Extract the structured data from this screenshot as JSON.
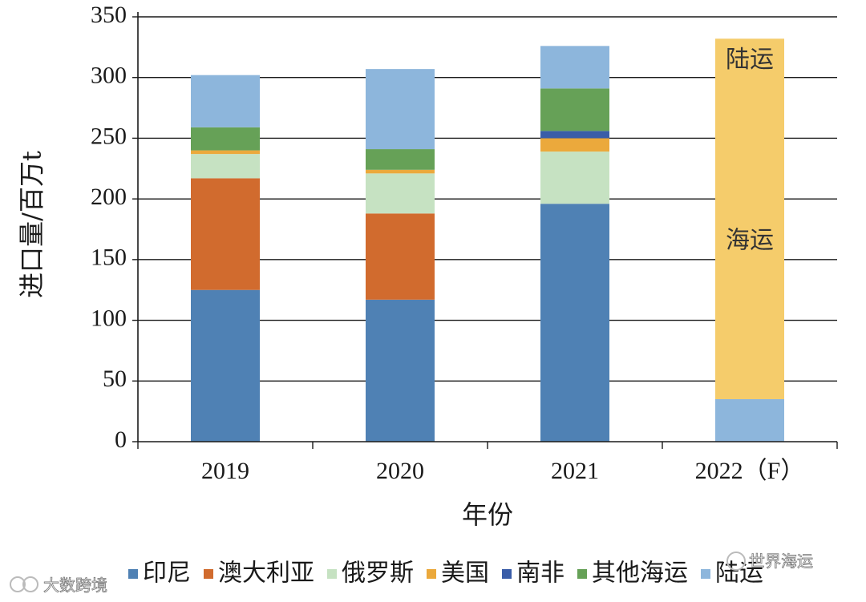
{
  "chart_data": {
    "type": "bar",
    "stacked": true,
    "categories": [
      "2019",
      "2020",
      "2021",
      "2022（F）"
    ],
    "series": [
      {
        "name": "印尼",
        "color": "#4f81b4",
        "values": [
          125,
          117,
          196,
          0
        ]
      },
      {
        "name": "澳大利亚",
        "color": "#d16b2e",
        "values": [
          92,
          71,
          0,
          0
        ]
      },
      {
        "name": "俄罗斯",
        "color": "#c6e2c2",
        "values": [
          20,
          33,
          43,
          0
        ]
      },
      {
        "name": "美国",
        "color": "#eba93c",
        "values": [
          3,
          3,
          11,
          0
        ]
      },
      {
        "name": "南非",
        "color": "#3a5da8",
        "values": [
          0,
          0,
          6,
          0
        ]
      },
      {
        "name": "其他海运",
        "color": "#66a157",
        "values": [
          19,
          17,
          35,
          0
        ]
      },
      {
        "name": "陆运",
        "color": "#8db6dc",
        "values": [
          43,
          66,
          35,
          35
        ]
      }
    ],
    "extra_series": [
      {
        "name": "海运",
        "color": "#f5cc6b",
        "values": [
          0,
          0,
          0,
          297
        ]
      }
    ],
    "in_bar_labels": [
      {
        "text": "陆运",
        "category": "2022（F）",
        "value": 314
      },
      {
        "text": "海运",
        "category": "2022（F）",
        "value": 165
      }
    ],
    "xlabel": "年份",
    "ylabel": "进口量/百万t",
    "ylim": [
      0,
      350
    ],
    "yticks": [
      0,
      50,
      100,
      150,
      200,
      250,
      300,
      350
    ],
    "grid": true,
    "legend_position": "bottom"
  },
  "watermarks": {
    "bottom_left": "大数跨境",
    "bottom_right": "世界海运"
  }
}
